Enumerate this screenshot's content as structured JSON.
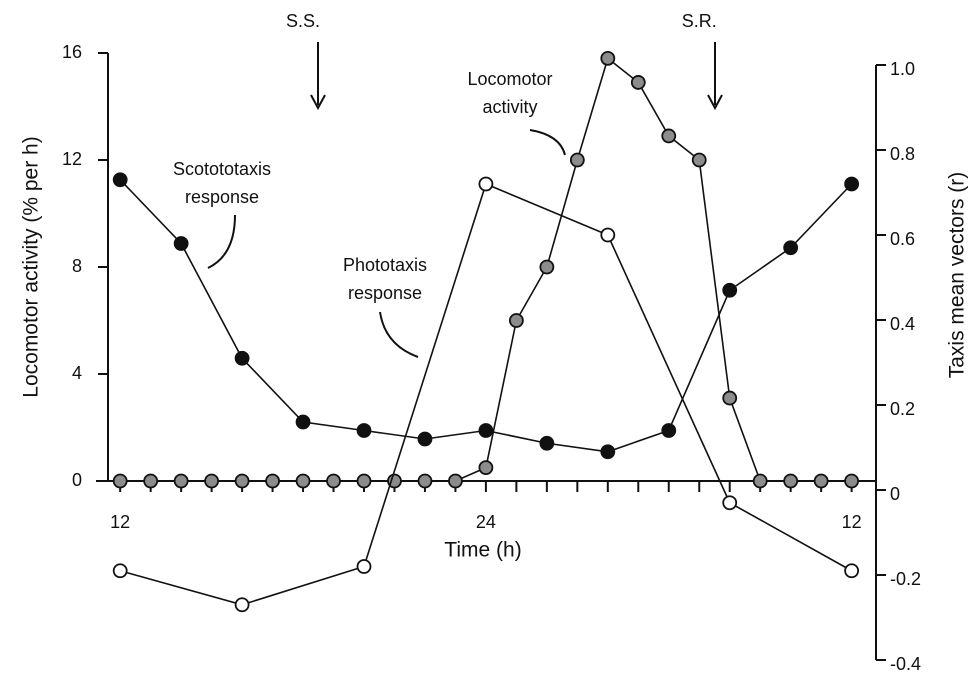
{
  "chart_data": {
    "type": "line",
    "xlabel": "Time (h)",
    "ylabel": "Locomotor activity (% per h)",
    "y2label": "Taxis mean vectors (r)",
    "xlim": [
      11.6,
      36.8
    ],
    "xticks": [
      12,
      24,
      {
        "value": 36,
        "label": "12"
      }
    ],
    "ylim": [
      0,
      16
    ],
    "yticks": [
      0,
      4,
      8,
      12,
      16
    ],
    "y2lim": [
      -0.4,
      1.0
    ],
    "y2ticks": [
      {
        "value": 1,
        "label": "1.0"
      },
      0.8,
      0.6,
      0.4,
      0.2,
      0,
      -0.2,
      -0.4
    ],
    "series": [
      {
        "color": "#8c8c8c",
        "axis": "y",
        "x": [
          12,
          13,
          14,
          15,
          16,
          17,
          18,
          19,
          20,
          21,
          22,
          23,
          24,
          25,
          26,
          27,
          28,
          29,
          30,
          31,
          32,
          33,
          34,
          35,
          36
        ],
        "values": [
          0,
          0,
          0,
          0,
          0,
          0,
          0,
          0,
          0,
          0,
          0,
          0,
          0.5,
          6,
          8,
          12,
          15.8,
          14.9,
          12.9,
          12,
          3.1,
          0,
          0,
          0,
          0
        ]
      },
      {
        "color": "#111111",
        "axis": "y2",
        "x": [
          12,
          14,
          16,
          18,
          20,
          22,
          24,
          26,
          28,
          30,
          32,
          34,
          36
        ],
        "values": [
          0.73,
          0.58,
          0.31,
          0.16,
          0.14,
          0.12,
          0.14,
          0.11,
          0.09,
          0.14,
          0.47,
          0.57,
          0.72
        ]
      },
      {
        "color": "#ffffff",
        "axis": "y2",
        "x": [
          12,
          16,
          20,
          24,
          28,
          32,
          36
        ],
        "values": [
          -0.19,
          -0.27,
          -0.18,
          0.72,
          0.6,
          -0.03,
          -0.19
        ]
      }
    ],
    "annotations": [
      {
        "lines": [
          "S.S."
        ],
        "x": 18
      },
      {
        "lines": [
          "S.R."
        ],
        "x": 31
      },
      {
        "lines": [
          "Locomotor",
          "activity"
        ]
      },
      {
        "lines": [
          "Scotototaxis",
          "response"
        ]
      },
      {
        "lines": [
          "Phototaxis",
          "response"
        ]
      }
    ]
  }
}
